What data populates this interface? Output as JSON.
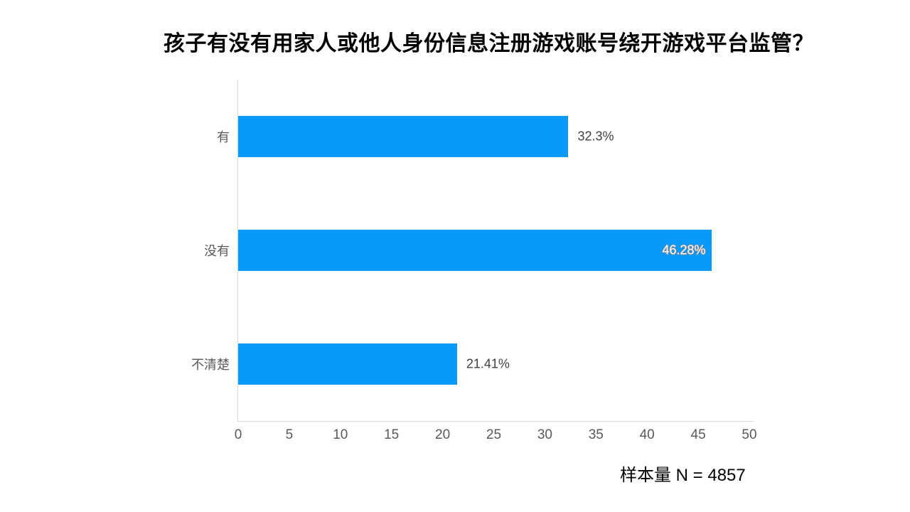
{
  "title": "孩子有没有用家人或他人身份信息注册游戏账号绕开游戏平台监管？",
  "footer_note": "样本量 N = 4857",
  "colors": {
    "bar": "#0999fa",
    "axis_line": "#d9d9d9",
    "category_text": "#595959",
    "tick_text": "#595959",
    "outside_label_text": "#404040",
    "inside_label_text": "#ffffff",
    "title_text": "#000000"
  },
  "chart_data": {
    "type": "bar",
    "orientation": "horizontal",
    "title": "孩子有没有用家人或他人身份信息注册游戏账号绕开游戏平台监管？",
    "categories": [
      "有",
      "没有",
      "不清楚"
    ],
    "values": [
      32.3,
      46.28,
      21.41
    ],
    "data_labels": [
      "32.3%",
      "46.28%",
      "21.41%"
    ],
    "label_inside": [
      false,
      true,
      false
    ],
    "xlim": [
      0,
      50
    ],
    "x_ticks": [
      0,
      5,
      10,
      15,
      20,
      25,
      30,
      35,
      40,
      45,
      50
    ],
    "xlabel": "",
    "ylabel": "",
    "grid": false,
    "legend": false,
    "annotation": "样本量 N = 4857"
  }
}
